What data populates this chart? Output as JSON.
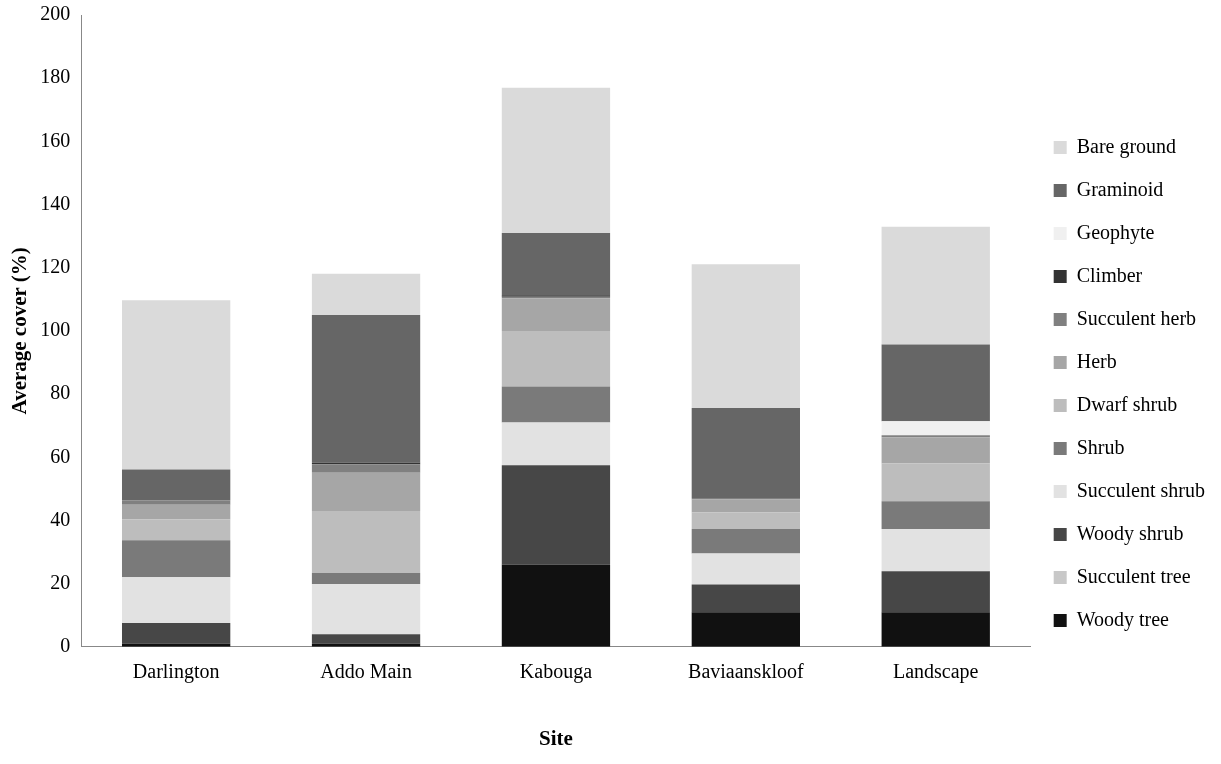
{
  "chart_data": {
    "type": "bar",
    "stacked": true,
    "xlabel": "Site",
    "ylabel": "Average cover (%)",
    "categories": [
      "Darlington",
      "Addo Main",
      "Kabouga",
      "Baviaanskloof",
      "Landscape"
    ],
    "ylim": [
      0,
      200
    ],
    "yticks": [
      0,
      20,
      40,
      60,
      80,
      100,
      120,
      140,
      160,
      180,
      200
    ],
    "grid": false,
    "legend": "right",
    "series": [
      {
        "name": "Woody tree",
        "color": "#111111",
        "values": [
          1,
          1,
          26,
          10.9,
          10.9
        ]
      },
      {
        "name": "Succulent tree",
        "color": "#c8c8c8",
        "values": [
          0,
          0,
          0,
          0,
          0
        ]
      },
      {
        "name": "Woody shrub",
        "color": "#474747",
        "values": [
          6.5,
          3,
          31.5,
          8.8,
          13
        ]
      },
      {
        "name": "Succulent shrub",
        "color": "#e2e2e2",
        "values": [
          14.5,
          15.9,
          13.5,
          9.8,
          13.4
        ]
      },
      {
        "name": "Shrub",
        "color": "#7a7a7a",
        "values": [
          11.7,
          3.5,
          11.4,
          7.8,
          8.8
        ]
      },
      {
        "name": "Dwarf shrub",
        "color": "#bdbdbd",
        "values": [
          6.7,
          19.6,
          17.6,
          5.2,
          11.9
        ]
      },
      {
        "name": "Herb",
        "color": "#a6a6a6",
        "values": [
          4.6,
          12.1,
          10.3,
          4.1,
          8.3
        ]
      },
      {
        "name": "Succulent herb",
        "color": "#808080",
        "values": [
          1.4,
          2.7,
          0.5,
          0.5,
          0.7
        ]
      },
      {
        "name": "Climber",
        "color": "#333333",
        "values": [
          0,
          0.5,
          0.5,
          0,
          0
        ]
      },
      {
        "name": "Geophyte",
        "color": "#f0f0f0",
        "values": [
          0,
          0,
          0,
          0,
          4.4
        ]
      },
      {
        "name": "Graminoid",
        "color": "#666666",
        "values": [
          9.7,
          46.7,
          19.7,
          28.5,
          24.3
        ]
      },
      {
        "name": "Bare ground",
        "color": "#dadada",
        "values": [
          53.6,
          13.1,
          46,
          45.5,
          37.3
        ]
      }
    ]
  }
}
